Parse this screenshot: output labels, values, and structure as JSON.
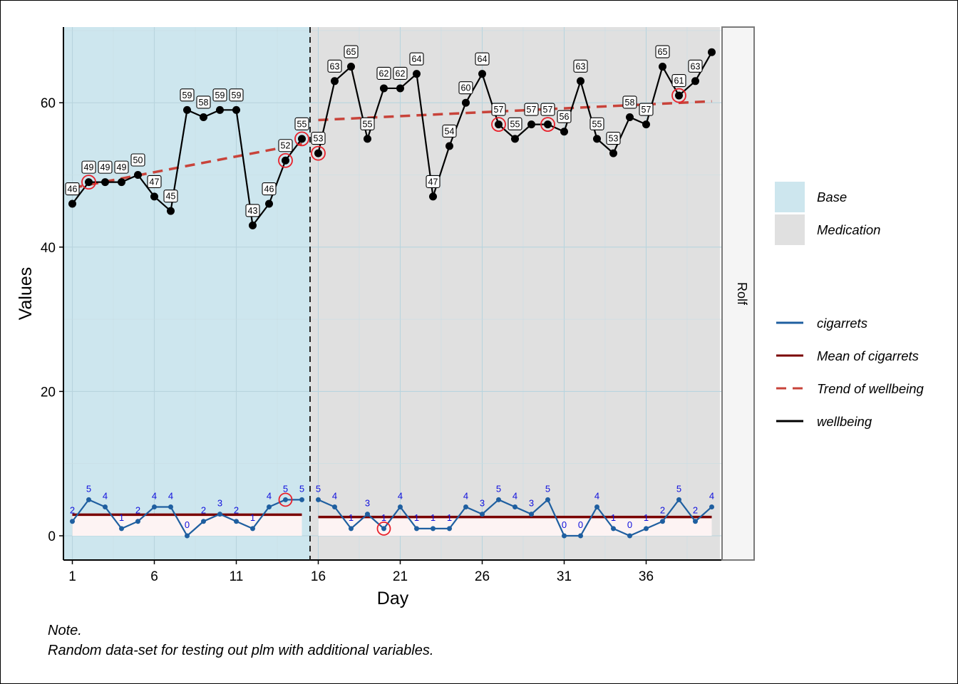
{
  "chart_data": {
    "type": "line",
    "xlabel": "Day",
    "ylabel": "Values",
    "facet_label": "Rolf",
    "xlim": [
      0.5,
      40.5
    ],
    "ylim": [
      -3.3,
      70.5
    ],
    "x_ticks": [
      1,
      6,
      11,
      16,
      21,
      26,
      31,
      36
    ],
    "y_ticks": [
      0,
      20,
      40,
      60
    ],
    "grid": true,
    "legend_position": "right",
    "phases": [
      {
        "name": "Base",
        "start": 0.5,
        "end": 15.5,
        "color": "#cde6ee"
      },
      {
        "name": "Medication",
        "start": 15.5,
        "end": 40.5,
        "color": "#e0e0e0"
      }
    ],
    "phase_change_at": 15.5,
    "colors": {
      "cigarrets": "#1f5fa0",
      "cigarrets_labels": "#1010dd",
      "mean": "#7a0000",
      "trend": "#c8433a",
      "wellbeing": "#000000",
      "outlier_ring": "#e8202a",
      "cig_band": "#fdf3f3"
    },
    "series": [
      {
        "name": "wellbeing",
        "x": [
          1,
          2,
          3,
          4,
          5,
          6,
          7,
          8,
          9,
          10,
          11,
          12,
          13,
          14,
          15,
          16,
          17,
          18,
          19,
          20,
          21,
          22,
          23,
          24,
          25,
          26,
          27,
          28,
          29,
          30,
          31,
          32,
          33,
          34,
          35,
          36,
          37,
          38,
          39,
          40
        ],
        "values": [
          46,
          49,
          49,
          49,
          50,
          47,
          45,
          59,
          58,
          59,
          59,
          43,
          46,
          52,
          55,
          53,
          63,
          65,
          55,
          62,
          62,
          64,
          47,
          54,
          60,
          64,
          57,
          55,
          57,
          57,
          56,
          63,
          55,
          53,
          58,
          57,
          65,
          61,
          63,
          67
        ],
        "labels": [
          "46",
          "49",
          "49",
          "49",
          "50",
          "47",
          "45",
          "59",
          "58",
          "59",
          "59",
          "43",
          "46",
          "52",
          "55",
          "53",
          "63",
          "65",
          "55",
          "62",
          "62",
          "64",
          "47",
          "54",
          "60",
          "64",
          "57",
          "55",
          "57",
          "57",
          "56",
          "63",
          "55",
          "53",
          "58",
          "57",
          "65",
          "61",
          "63",
          ""
        ]
      },
      {
        "name": "cigarrets",
        "x": [
          1,
          2,
          3,
          4,
          5,
          6,
          7,
          8,
          9,
          10,
          11,
          12,
          13,
          14,
          15,
          16,
          17,
          18,
          19,
          20,
          21,
          22,
          23,
          24,
          25,
          26,
          27,
          28,
          29,
          30,
          31,
          32,
          33,
          34,
          35,
          36,
          37,
          38,
          39,
          40
        ],
        "values": [
          2,
          5,
          4,
          1,
          2,
          4,
          4,
          0,
          2,
          3,
          2,
          1,
          4,
          5,
          5,
          5,
          4,
          1,
          3,
          1,
          4,
          1,
          1,
          1,
          4,
          3,
          5,
          4,
          3,
          5,
          0,
          0,
          4,
          1,
          0,
          1,
          2,
          5,
          2,
          4
        ],
        "labels": [
          "2",
          "5",
          "4",
          "1",
          "2",
          "4",
          "4",
          "0",
          "2",
          "3",
          "2",
          "1",
          "4",
          "5",
          "5",
          "5",
          "4",
          "1",
          "3",
          "1",
          "4",
          "1",
          "1",
          "1",
          "4",
          "3",
          "5",
          "4",
          "3",
          "5",
          "0",
          "0",
          "4",
          "1",
          "0",
          "1",
          "2",
          "5",
          "2",
          "4"
        ]
      }
    ],
    "mean_of_cigarrets": [
      {
        "phase": "Base",
        "x_start": 1,
        "x_end": 15,
        "value": 2.93
      },
      {
        "phase": "Medication",
        "x_start": 16,
        "x_end": 40,
        "value": 2.6
      }
    ],
    "trend_of_wellbeing": [
      {
        "phase": "Base",
        "x": [
          1,
          15
        ],
        "y": [
          48.2,
          54.3
        ]
      },
      {
        "phase": "Medication",
        "x": [
          16,
          40
        ],
        "y": [
          57.6,
          60.2
        ]
      }
    ],
    "wellbeing_outliers_x": [
      2,
      14,
      15,
      16,
      27,
      30,
      38
    ],
    "cigarrets_outliers_x": [
      14,
      20
    ],
    "legend": {
      "phases": [
        "Base",
        "Medication"
      ],
      "lines": [
        {
          "label": "cigarrets",
          "key": "cigarrets",
          "style": "solid"
        },
        {
          "label": "Mean of cigarrets",
          "key": "mean",
          "style": "solid"
        },
        {
          "label": "Trend of wellbeing",
          "key": "trend",
          "style": "dashed"
        },
        {
          "label": "wellbeing",
          "key": "wellbeing",
          "style": "solid"
        }
      ]
    }
  },
  "note": {
    "title": "Note.",
    "body": "Random data-set for testing out plm with additional variables."
  }
}
